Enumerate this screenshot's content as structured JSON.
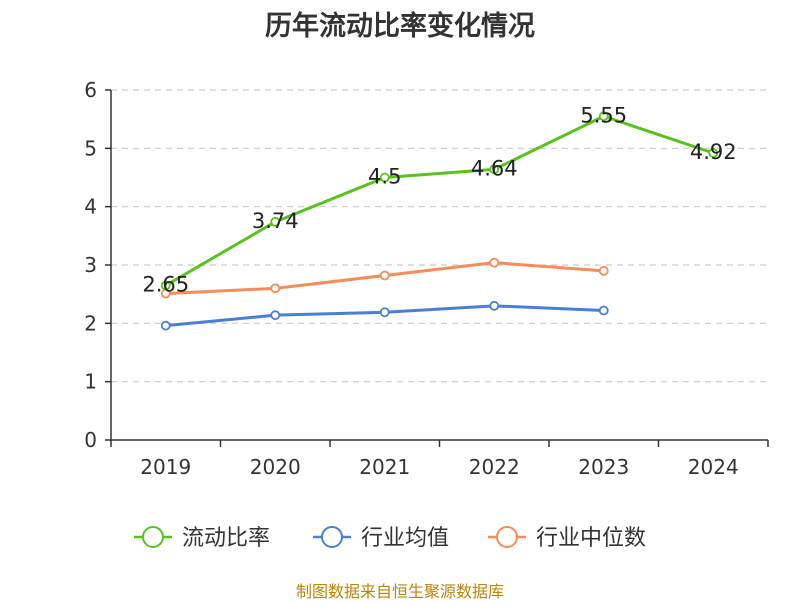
{
  "chart_data": {
    "type": "line",
    "title": "历年流动比率变化情况",
    "xlabel": "",
    "ylabel": "",
    "categories": [
      "2019",
      "2020",
      "2021",
      "2022",
      "2023",
      "2024"
    ],
    "ylim": [
      0,
      6
    ],
    "yticks": [
      "0",
      "1",
      "2",
      "3",
      "4",
      "5",
      "6"
    ],
    "grid": true,
    "legend_position": "bottom",
    "series": [
      {
        "name": "流动比率",
        "color": "#5ac21f",
        "values": [
          2.65,
          3.74,
          4.5,
          4.64,
          5.55,
          4.92
        ],
        "labels": [
          "2.65",
          "3.74",
          "4.5",
          "4.64",
          "5.55",
          "4.92"
        ]
      },
      {
        "name": "行业均值",
        "color": "#4a7fd6",
        "values": [
          1.96,
          2.14,
          2.19,
          2.3,
          2.22,
          null
        ],
        "labels": []
      },
      {
        "name": "行业中位数",
        "color": "#f58c5a",
        "values": [
          2.51,
          2.6,
          2.82,
          3.04,
          2.9,
          null
        ],
        "labels": []
      }
    ]
  },
  "footer": {
    "source": "制图数据来自恒生聚源数据库"
  }
}
